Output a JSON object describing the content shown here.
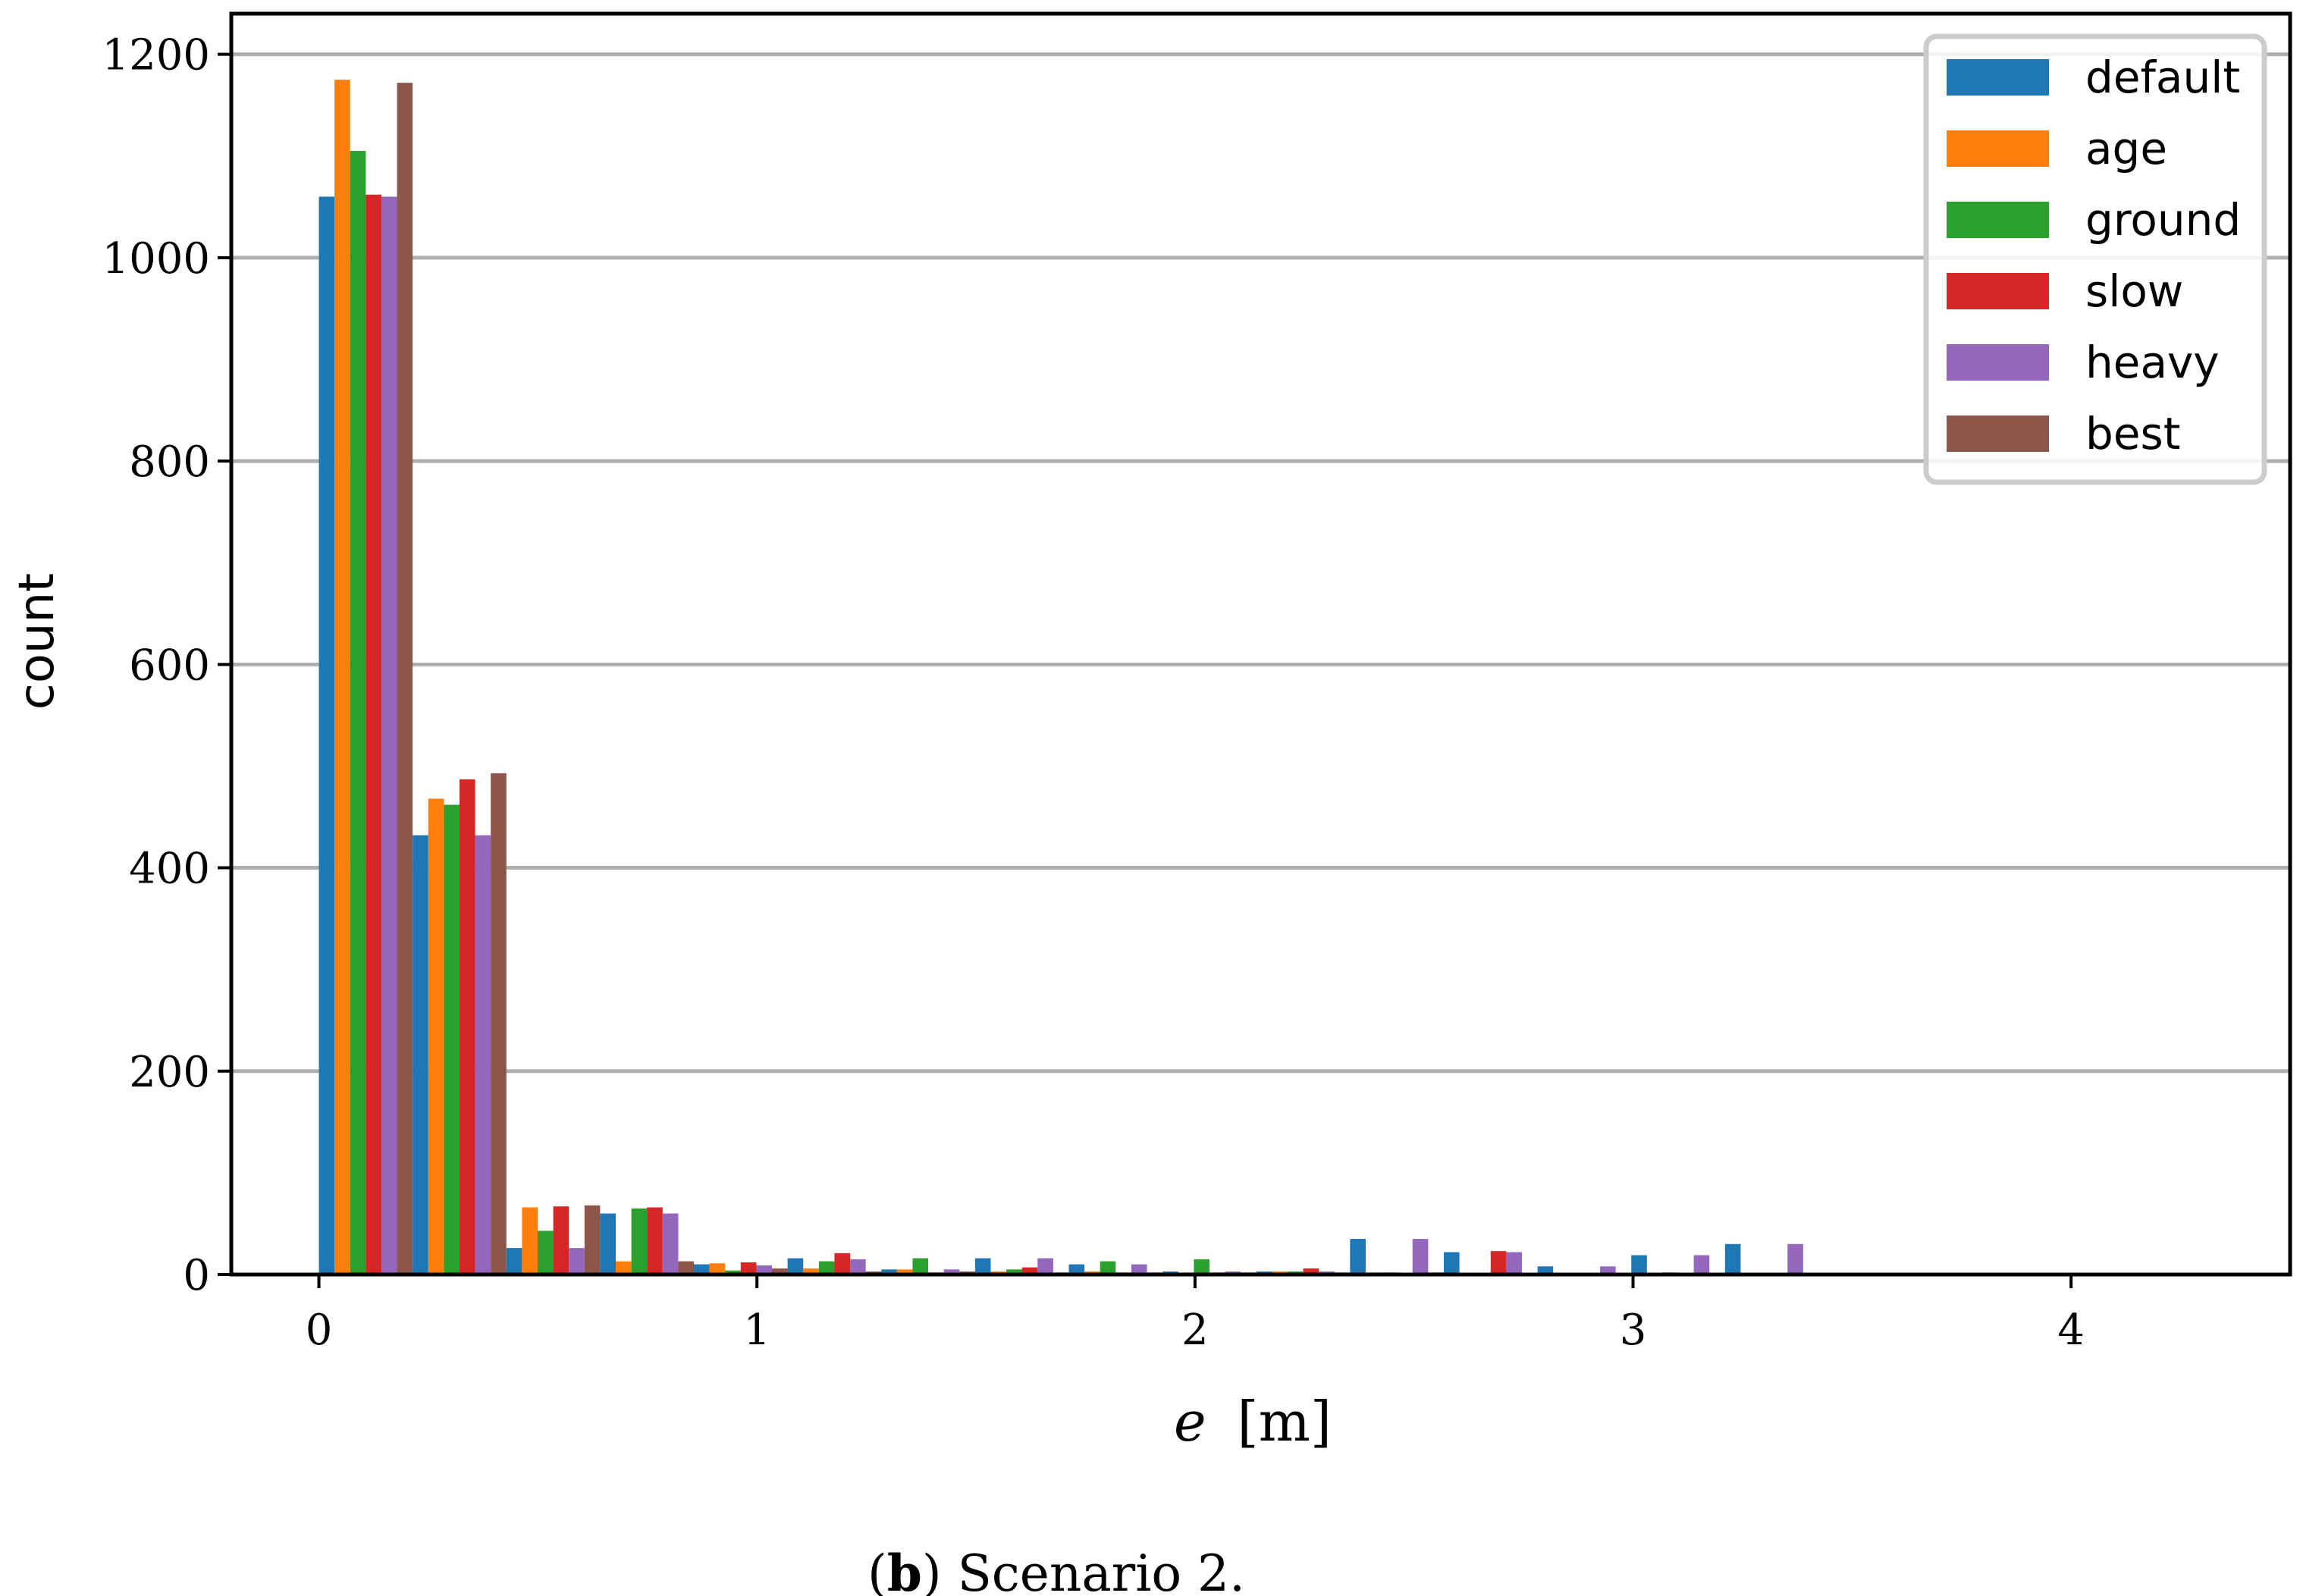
{
  "chart_data": {
    "type": "bar",
    "xlabel": "e [m]",
    "xlabel_var": "e",
    "xlabel_unit": "[m]",
    "ylabel": "count",
    "xlim": [
      -0.2,
      4.5
    ],
    "ylim": [
      0,
      1240
    ],
    "xticks": [
      "0",
      "1",
      "2",
      "3",
      "4"
    ],
    "yticks": [
      "0",
      "200",
      "400",
      "600",
      "800",
      "1000",
      "1200"
    ],
    "grid": "horizontal",
    "legend_position": "top-right",
    "bin_width": 0.214,
    "bin_starts": [
      0,
      0.214,
      0.428,
      0.642,
      0.856,
      1.07,
      1.284,
      1.498,
      1.712,
      1.926,
      2.14,
      2.354,
      2.568,
      2.782,
      2.996,
      3.21
    ],
    "series": [
      {
        "name": "default",
        "color": "#1f77b4",
        "values": [
          1060,
          432,
          26,
          60,
          10,
          16,
          5,
          16,
          10,
          3,
          3,
          35,
          22,
          8,
          19,
          30
        ]
      },
      {
        "name": "age",
        "color": "#ff7f0e",
        "values": [
          1175,
          468,
          66,
          13,
          11,
          6,
          5,
          3,
          3,
          2,
          3,
          2,
          0,
          0,
          0,
          0
        ]
      },
      {
        "name": "ground",
        "color": "#2ca02c",
        "values": [
          1105,
          462,
          43,
          65,
          4,
          13,
          16,
          5,
          13,
          15,
          3,
          2,
          0,
          0,
          2,
          0
        ]
      },
      {
        "name": "slow",
        "color": "#d62728",
        "values": [
          1062,
          487,
          67,
          66,
          12,
          21,
          2,
          7,
          2,
          2,
          6,
          0,
          23,
          0,
          0,
          0
        ]
      },
      {
        "name": "heavy",
        "color": "#9467bd",
        "values": [
          1060,
          432,
          26,
          60,
          9,
          15,
          5,
          16,
          10,
          3,
          3,
          35,
          22,
          8,
          19,
          30
        ]
      },
      {
        "name": "best",
        "color": "#8c564b",
        "values": [
          1172,
          493,
          68,
          13,
          6,
          3,
          3,
          2,
          2,
          2,
          2,
          2,
          0,
          0,
          0,
          0
        ]
      }
    ]
  },
  "caption": {
    "open": "(",
    "letter": "b",
    "rest": ") Scenario 2."
  }
}
